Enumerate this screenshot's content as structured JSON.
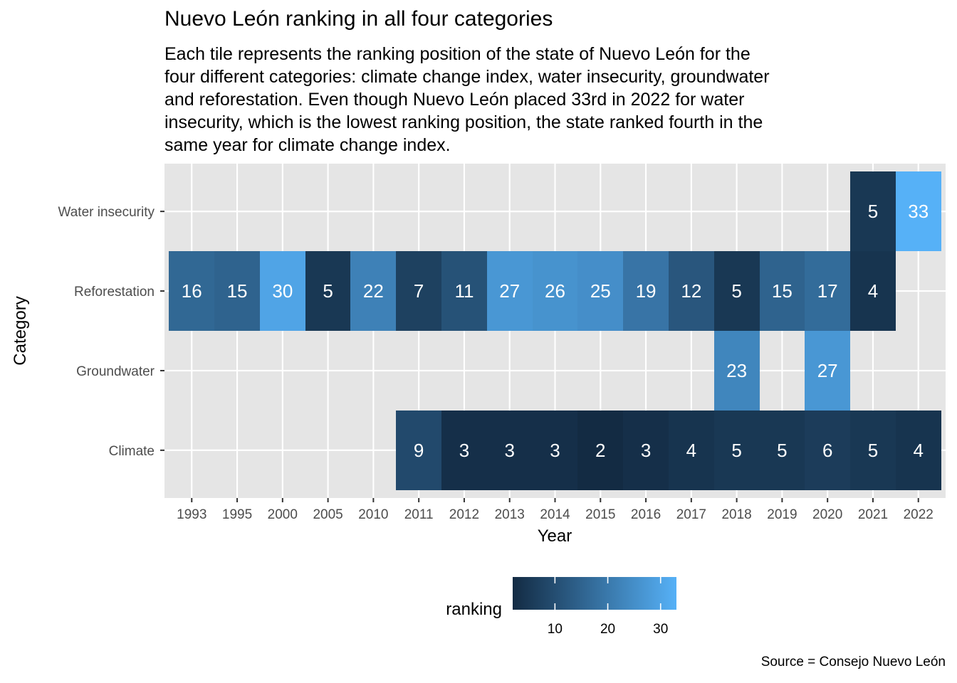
{
  "chart_data": {
    "type": "heatmap",
    "title": "Nuevo León ranking in all four categories",
    "subtitle_lines": [
      "Each tile represents the ranking position of the state of Nuevo León for the",
      "four different categories: climate change index, water insecurity, groundwater",
      "and reforestation. Even though Nuevo León placed 33rd in 2022 for water",
      "insecurity, which is the lowest ranking position, the state ranked fourth in the",
      "same year for climate change index."
    ],
    "caption": "Source = Consejo Nuevo León",
    "xlabel": "Year",
    "ylabel": "Category",
    "x": [
      "1993",
      "1995",
      "2000",
      "2005",
      "2010",
      "2011",
      "2012",
      "2013",
      "2014",
      "2015",
      "2016",
      "2017",
      "2018",
      "2019",
      "2020",
      "2021",
      "2022"
    ],
    "y": [
      "Water insecurity",
      "Reforestation",
      "Groundwater",
      "Climate"
    ],
    "cells": [
      {
        "category": "Water insecurity",
        "year": "2021",
        "value": 5
      },
      {
        "category": "Water insecurity",
        "year": "2022",
        "value": 33
      },
      {
        "category": "Reforestation",
        "year": "1993",
        "value": 16
      },
      {
        "category": "Reforestation",
        "year": "1995",
        "value": 15
      },
      {
        "category": "Reforestation",
        "year": "2000",
        "value": 30
      },
      {
        "category": "Reforestation",
        "year": "2005",
        "value": 5
      },
      {
        "category": "Reforestation",
        "year": "2010",
        "value": 22
      },
      {
        "category": "Reforestation",
        "year": "2011",
        "value": 7
      },
      {
        "category": "Reforestation",
        "year": "2012",
        "value": 11
      },
      {
        "category": "Reforestation",
        "year": "2013",
        "value": 27
      },
      {
        "category": "Reforestation",
        "year": "2014",
        "value": 26
      },
      {
        "category": "Reforestation",
        "year": "2015",
        "value": 25
      },
      {
        "category": "Reforestation",
        "year": "2016",
        "value": 19
      },
      {
        "category": "Reforestation",
        "year": "2017",
        "value": 12
      },
      {
        "category": "Reforestation",
        "year": "2018",
        "value": 5
      },
      {
        "category": "Reforestation",
        "year": "2019",
        "value": 15
      },
      {
        "category": "Reforestation",
        "year": "2020",
        "value": 17
      },
      {
        "category": "Reforestation",
        "year": "2021",
        "value": 4
      },
      {
        "category": "Groundwater",
        "year": "2018",
        "value": 23
      },
      {
        "category": "Groundwater",
        "year": "2020",
        "value": 27
      },
      {
        "category": "Climate",
        "year": "2011",
        "value": 9
      },
      {
        "category": "Climate",
        "year": "2012",
        "value": 3
      },
      {
        "category": "Climate",
        "year": "2013",
        "value": 3
      },
      {
        "category": "Climate",
        "year": "2014",
        "value": 3
      },
      {
        "category": "Climate",
        "year": "2015",
        "value": 2
      },
      {
        "category": "Climate",
        "year": "2016",
        "value": 3
      },
      {
        "category": "Climate",
        "year": "2017",
        "value": 4
      },
      {
        "category": "Climate",
        "year": "2018",
        "value": 5
      },
      {
        "category": "Climate",
        "year": "2019",
        "value": 5
      },
      {
        "category": "Climate",
        "year": "2020",
        "value": 6
      },
      {
        "category": "Climate",
        "year": "2021",
        "value": 5
      },
      {
        "category": "Climate",
        "year": "2022",
        "value": 4
      }
    ],
    "legend": {
      "title": "ranking",
      "position": "bottom",
      "min": 2,
      "max": 33,
      "breaks": [
        10,
        20,
        30
      ],
      "low_color": "#132B43",
      "high_color": "#56B1F7"
    },
    "grid": true,
    "panel_background": "#E5E5E5"
  }
}
